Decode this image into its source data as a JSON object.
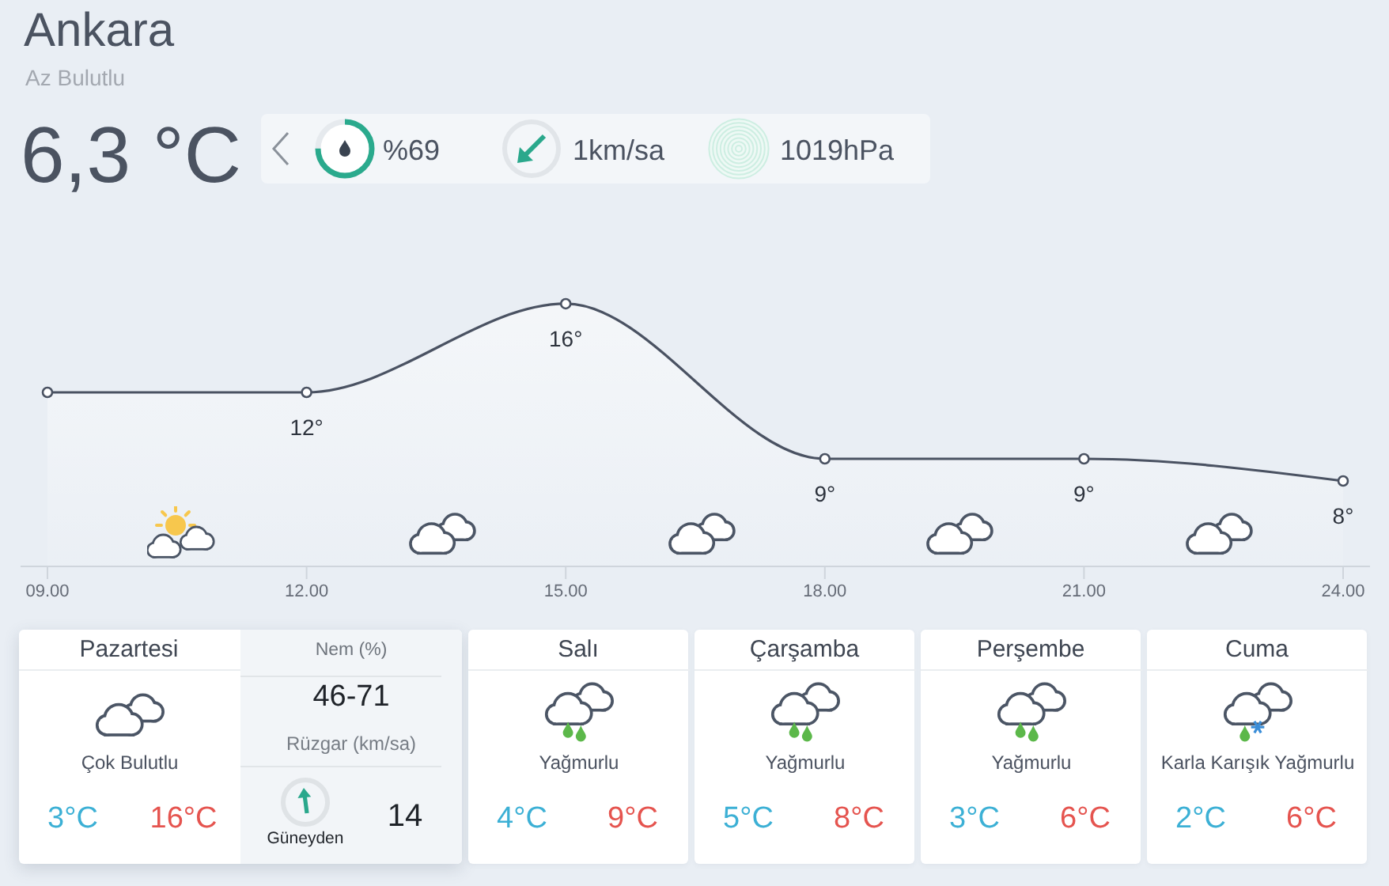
{
  "chart_data": [
    {
      "type": "other",
      "title": "Ankara",
      "subtitle": "Az Bulutlu",
      "annotations": [
        "6,3 °C",
        "%69",
        "1km/sa",
        "1019hPa"
      ]
    },
    {
      "type": "area",
      "categories": [
        "09.00",
        "12.00",
        "15.00",
        "18.00",
        "21.00",
        "24.00"
      ],
      "values": [
        12,
        12,
        16,
        9,
        9,
        8
      ],
      "value_labels": [
        null,
        "12°",
        "16°",
        "9°",
        "9°",
        "8°"
      ],
      "color": "#4a5262",
      "marker": "circle"
    },
    {
      "type": "other",
      "title": "Pazartesi",
      "annotations": [
        "Çok Bulutlu",
        "3°C",
        "16°C",
        "Nem (%)",
        "46-71",
        "Rüzgar (km/sa)",
        "Güneyden",
        "14"
      ]
    },
    {
      "type": "other",
      "title": "Salı",
      "annotations": [
        "Yağmurlu",
        "4°C",
        "9°C"
      ]
    },
    {
      "type": "other",
      "title": "Çarşamba",
      "annotations": [
        "Yağmurlu",
        "5°C",
        "8°C"
      ]
    },
    {
      "type": "other",
      "title": "Perşembe",
      "annotations": [
        "Yağmurlu",
        "3°C",
        "6°C"
      ]
    },
    {
      "type": "other",
      "title": "Cuma",
      "annotations": [
        "Karla Karışık Yağmurlu",
        "2°C",
        "6°C"
      ]
    }
  ]
}
